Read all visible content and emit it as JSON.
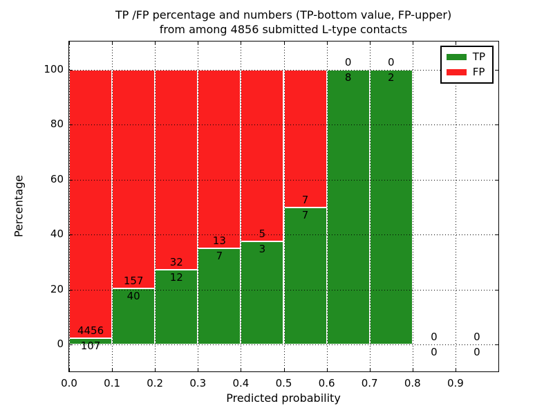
{
  "title": {
    "line1": "TP /FP percentage and numbers (TP-bottom value, FP-upper)",
    "line2": "from among 4856 submitted L-type contacts"
  },
  "axes": {
    "ylabel": "Percentage",
    "xlabel": "Predicted probability",
    "yticks": [
      0,
      20,
      40,
      60,
      80,
      100
    ],
    "xticks": [
      "0.0",
      "0.1",
      "0.2",
      "0.3",
      "0.4",
      "0.5",
      "0.6",
      "0.7",
      "0.8",
      "0.9"
    ],
    "xlim": [
      0.0,
      1.0
    ],
    "ylim": [
      -10,
      110
    ],
    "grid_style": "dotted"
  },
  "legend": {
    "items": [
      {
        "label": "TP",
        "color": "#228b22"
      },
      {
        "label": "FP",
        "color": "#fb1f1f"
      }
    ],
    "position": "upper right"
  },
  "chart_data": {
    "type": "bar",
    "stacked": true,
    "title": "TP /FP percentage and numbers (TP-bottom value, FP-upper) from among 4856 submitted L-type contacts",
    "xlabel": "Predicted probability",
    "ylabel": "Percentage",
    "xlim": [
      0.0,
      1.0
    ],
    "ylim": [
      -10,
      110
    ],
    "bin_width": 0.1,
    "total_contacts": 4856,
    "annotation_rule": "FP count printed above TP/FP boundary, TP count printed below it",
    "colors": {
      "tp": "#228b22",
      "fp": "#fb1f1f"
    },
    "bins": [
      {
        "x0": 0.0,
        "x1": 0.1,
        "tp": 107,
        "fp": 4456,
        "tp_pct": 2.3
      },
      {
        "x0": 0.1,
        "x1": 0.2,
        "tp": 40,
        "fp": 157,
        "tp_pct": 20.3
      },
      {
        "x0": 0.2,
        "x1": 0.3,
        "tp": 12,
        "fp": 32,
        "tp_pct": 27.3
      },
      {
        "x0": 0.3,
        "x1": 0.4,
        "tp": 7,
        "fp": 13,
        "tp_pct": 35.0
      },
      {
        "x0": 0.4,
        "x1": 0.5,
        "tp": 3,
        "fp": 5,
        "tp_pct": 37.5
      },
      {
        "x0": 0.5,
        "x1": 0.6,
        "tp": 7,
        "fp": 7,
        "tp_pct": 50.0
      },
      {
        "x0": 0.6,
        "x1": 0.7,
        "tp": 8,
        "fp": 0,
        "tp_pct": 100.0
      },
      {
        "x0": 0.7,
        "x1": 0.8,
        "tp": 2,
        "fp": 0,
        "tp_pct": 100.0
      },
      {
        "x0": 0.8,
        "x1": 0.9,
        "tp": 0,
        "fp": 0,
        "tp_pct": null
      },
      {
        "x0": 0.9,
        "x1": 1.0,
        "tp": 0,
        "fp": 0,
        "tp_pct": null
      }
    ]
  }
}
